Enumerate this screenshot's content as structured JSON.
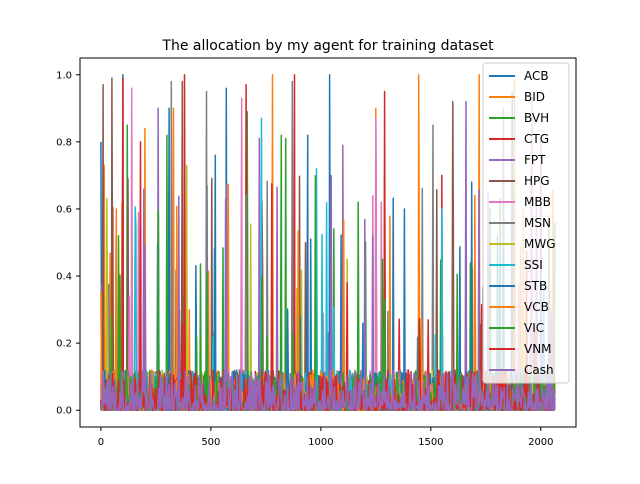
{
  "chart_data": {
    "type": "line",
    "title": "The allocation by my agent for training dataset",
    "xlabel": "",
    "ylabel": "",
    "xlim": [
      -95,
      2160
    ],
    "ylim": [
      -0.05,
      1.05
    ],
    "x_ticks": [
      0,
      500,
      1000,
      1500,
      2000
    ],
    "x_tick_labels": [
      "0",
      "500",
      "1000",
      "1500",
      "2000"
    ],
    "y_ticks": [
      0.0,
      0.2,
      0.4,
      0.6,
      0.8,
      1.0
    ],
    "y_tick_labels": [
      "0.0",
      "0.2",
      "0.4",
      "0.6",
      "0.8",
      "1.0"
    ],
    "legend_position": "upper right",
    "grid": false,
    "series_count_note_points": 2065,
    "series": [
      {
        "name": "ACB",
        "color": "#1f77b4",
        "peaks": [
          [
            0,
            0.8
          ],
          [
            100,
            1.0
          ],
          [
            310,
            0.9
          ],
          [
            570,
            0.96
          ],
          [
            1040,
            1.0
          ],
          [
            1250,
            0.85
          ],
          [
            1870,
            0.95
          ]
        ]
      },
      {
        "name": "BID",
        "color": "#ff7f0e",
        "peaks": [
          [
            15,
            0.73
          ],
          [
            330,
            0.9
          ],
          [
            780,
            1.0
          ],
          [
            1250,
            0.9
          ],
          [
            1445,
            1.0
          ],
          [
            1720,
            1.0
          ],
          [
            1880,
            0.98
          ]
        ]
      },
      {
        "name": "BVH",
        "color": "#2ca02c",
        "peaks": [
          [
            120,
            0.85
          ],
          [
            300,
            0.82
          ],
          [
            665,
            0.89
          ],
          [
            840,
            0.81
          ],
          [
            1290,
            0.71
          ],
          [
            1770,
            0.6
          ]
        ]
      },
      {
        "name": "CTG",
        "color": "#d62728",
        "peaks": [
          [
            100,
            0.99
          ],
          [
            380,
            1.0
          ],
          [
            660,
            0.97
          ],
          [
            880,
            1.0
          ],
          [
            1290,
            0.95
          ],
          [
            1550,
            0.7
          ]
        ]
      },
      {
        "name": "FPT",
        "color": "#9467bd",
        "peaks": [
          [
            260,
            0.9
          ],
          [
            720,
            0.81
          ],
          [
            1100,
            0.79
          ],
          [
            1660,
            0.92
          ],
          [
            2000,
            0.8
          ]
        ]
      },
      {
        "name": "HPG",
        "color": "#8c564b",
        "peaks": [
          [
            10,
            0.97
          ],
          [
            50,
            0.99
          ],
          [
            370,
            0.98
          ],
          [
            1600,
            0.92
          ]
        ]
      },
      {
        "name": "MBB",
        "color": "#e377c2",
        "peaks": [
          [
            140,
            0.96
          ],
          [
            640,
            0.93
          ],
          [
            1250,
            0.87
          ],
          [
            1960,
            0.93
          ]
        ]
      },
      {
        "name": "MSN",
        "color": "#7f7f7f",
        "peaks": [
          [
            320,
            0.98
          ],
          [
            480,
            0.95
          ],
          [
            870,
            0.98
          ],
          [
            1510,
            0.85
          ],
          [
            1830,
            0.9
          ]
        ]
      },
      {
        "name": "MWG",
        "color": "#bcbd22",
        "peaks": [
          [
            390,
            0.73
          ],
          [
            1120,
            0.45
          ],
          [
            1920,
            0.6
          ]
        ]
      },
      {
        "name": "SSI",
        "color": "#17becf",
        "peaks": [
          [
            730,
            0.87
          ],
          [
            980,
            0.72
          ],
          [
            1550,
            0.6
          ]
        ]
      },
      {
        "name": "STB",
        "color": "#1f77b4",
        "peaks": [
          [
            520,
            0.76
          ],
          [
            940,
            0.82
          ],
          [
            1380,
            0.6
          ]
        ]
      },
      {
        "name": "VCB",
        "color": "#ff7f0e",
        "peaks": [
          [
            70,
            0.6
          ],
          [
            200,
            0.84
          ],
          [
            1700,
            0.64
          ]
        ]
      },
      {
        "name": "VIC",
        "color": "#2ca02c",
        "peaks": [
          [
            80,
            0.52
          ],
          [
            820,
            0.82
          ],
          [
            1280,
            0.45
          ]
        ]
      },
      {
        "name": "VNM",
        "color": "#d62728",
        "peaks": [
          [
            180,
            0.8
          ],
          [
            380,
            0.6
          ],
          [
            1120,
            0.38
          ]
        ]
      },
      {
        "name": "Cash",
        "color": "#9467bd",
        "peaks": [
          [
            200,
            0.49
          ],
          [
            1760,
            0.65
          ],
          [
            2040,
            0.35
          ]
        ]
      }
    ]
  }
}
